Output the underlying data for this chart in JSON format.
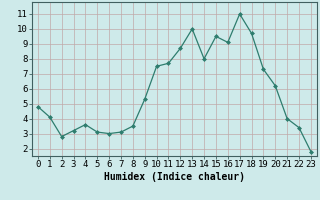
{
  "x": [
    0,
    1,
    2,
    3,
    4,
    5,
    6,
    7,
    8,
    9,
    10,
    11,
    12,
    13,
    14,
    15,
    16,
    17,
    18,
    19,
    20,
    21,
    22,
    23
  ],
  "y": [
    4.8,
    4.1,
    2.8,
    3.2,
    3.6,
    3.1,
    3.0,
    3.1,
    3.5,
    5.3,
    7.5,
    7.7,
    8.7,
    10.0,
    8.0,
    9.5,
    9.1,
    11.0,
    9.7,
    7.3,
    6.2,
    4.0,
    3.4,
    1.8
  ],
  "line_color": "#2e7d6e",
  "marker": "D",
  "marker_size": 2.0,
  "bg_color": "#ceeaea",
  "grid_color": "#c0a8a8",
  "xlabel": "Humidex (Indice chaleur)",
  "xlabel_fontsize": 7,
  "tick_fontsize": 6.5,
  "ylim": [
    1.5,
    11.8
  ],
  "xlim": [
    -0.5,
    23.5
  ],
  "yticks": [
    2,
    3,
    4,
    5,
    6,
    7,
    8,
    9,
    10,
    11
  ],
  "xticks": [
    0,
    1,
    2,
    3,
    4,
    5,
    6,
    7,
    8,
    9,
    10,
    11,
    12,
    13,
    14,
    15,
    16,
    17,
    18,
    19,
    20,
    21,
    22,
    23
  ]
}
